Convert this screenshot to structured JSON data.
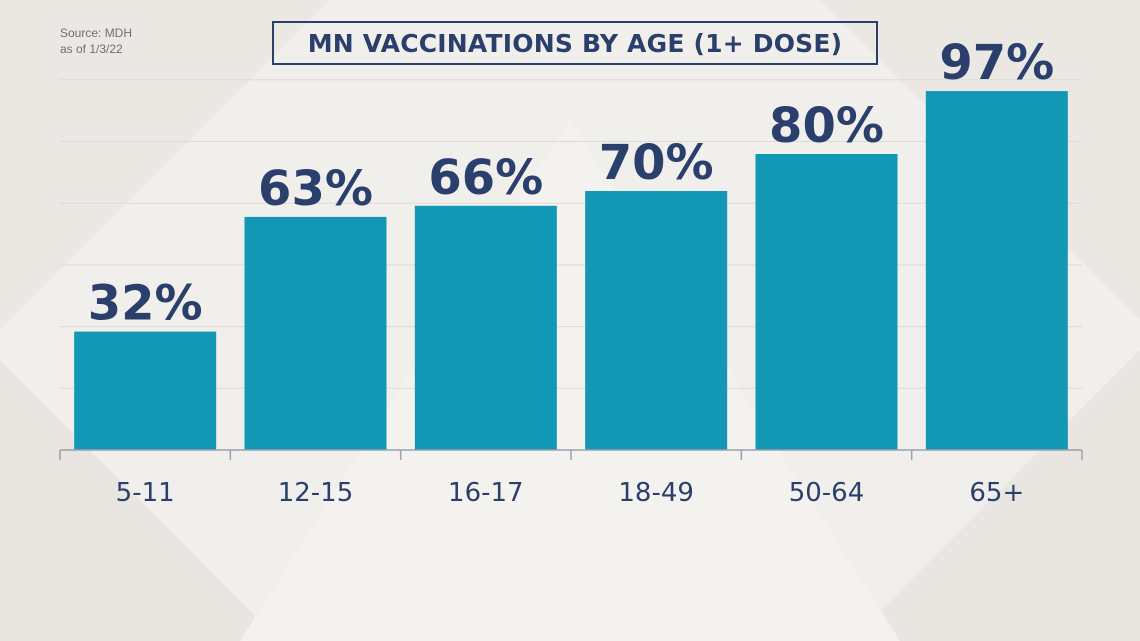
{
  "source": {
    "line1": "Source: MDH",
    "line2": "as of 1/3/22"
  },
  "colors": {
    "bar": "#1297b5",
    "text": "#2a3f6b",
    "axis": "#9aa1ad",
    "grid": "#dcdad6"
  },
  "chart_data": {
    "type": "bar",
    "title": "MN VACCINATIONS BY AGE (1+ DOSE)",
    "categories": [
      "5-11",
      "12-15",
      "16-17",
      "18-49",
      "50-64",
      "65+"
    ],
    "values": [
      32,
      63,
      66,
      70,
      80,
      97
    ],
    "value_labels": [
      "32%",
      "63%",
      "66%",
      "70%",
      "80%",
      "97%"
    ],
    "xlabel": "",
    "ylabel": "",
    "ylim": [
      0,
      100
    ],
    "grid": true
  }
}
